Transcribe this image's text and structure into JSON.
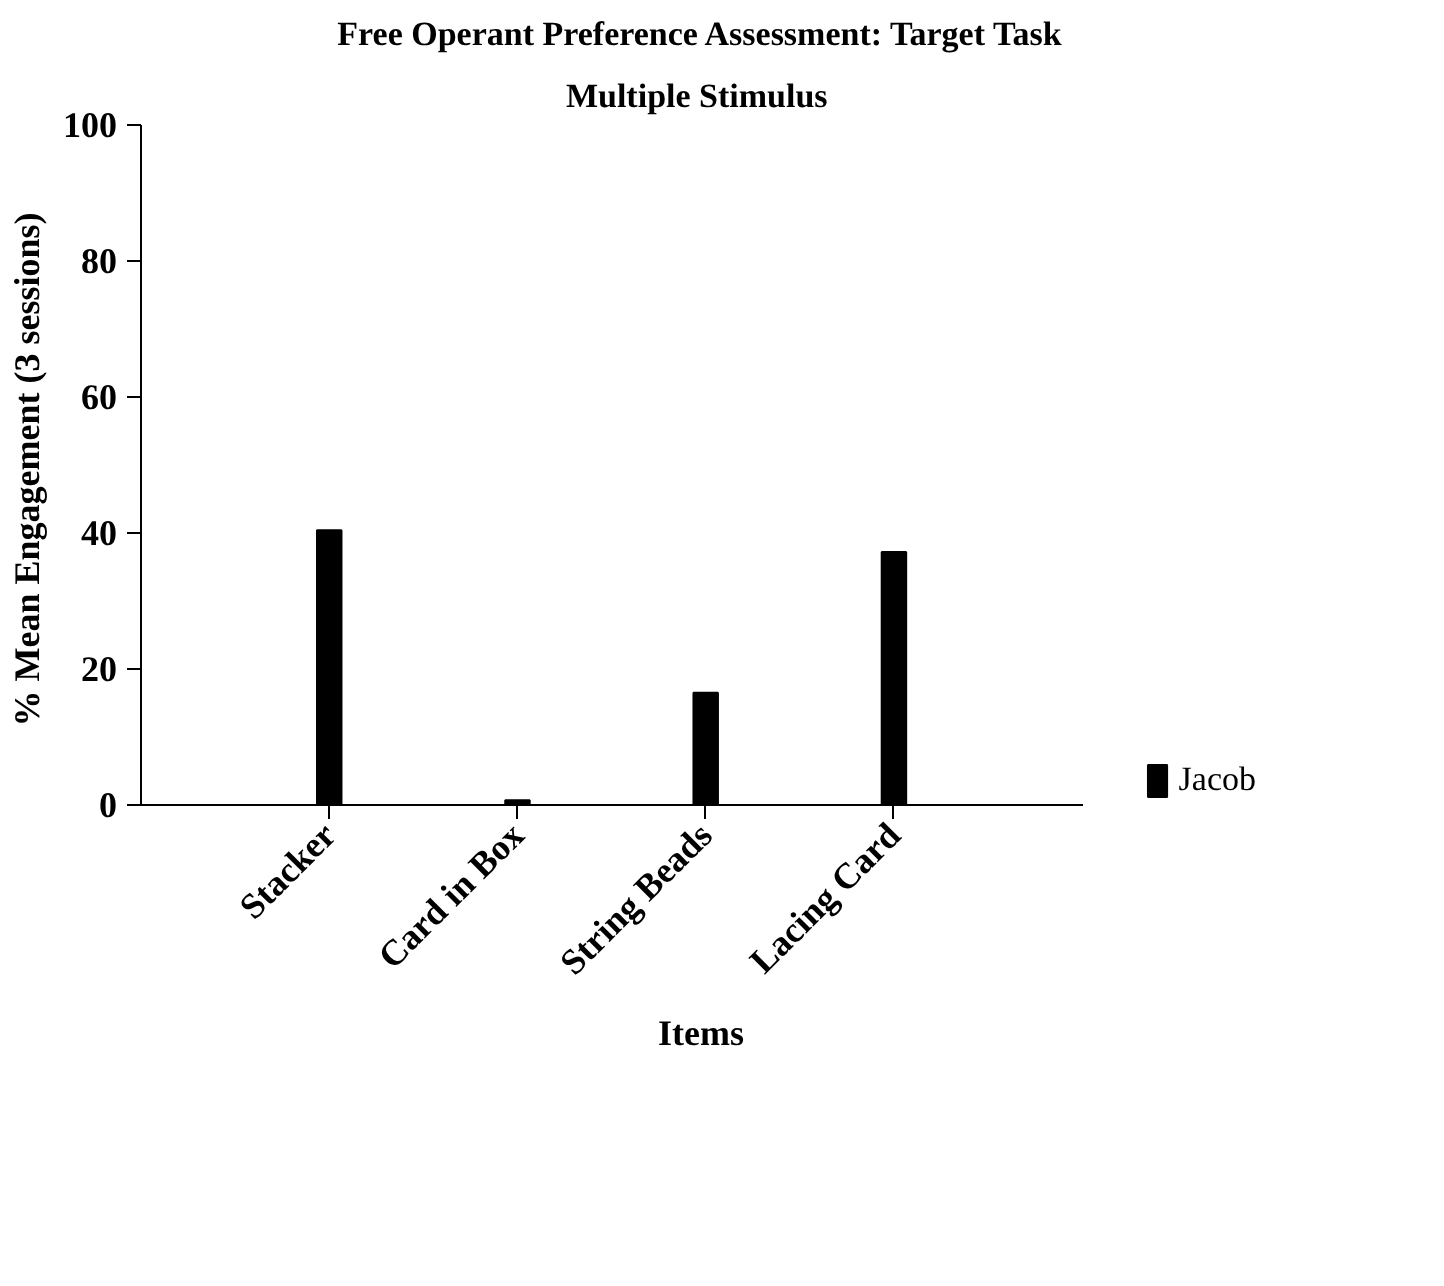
{
  "chart_data": {
    "type": "bar",
    "title": "Free Operant Preference Assessment: Target Task",
    "subtitle": "Multiple  Stimulus",
    "xlabel": "Items",
    "ylabel": "% Mean Engagement  (3 sessions)",
    "categories": [
      "Stacker",
      "Card in Box",
      "String Beads",
      "Lacing Card"
    ],
    "series": [
      {
        "name": "Jacob",
        "color": "#000000",
        "values": [
          40.4,
          0.7,
          16.5,
          37.2
        ]
      }
    ],
    "ylim": [
      0,
      100
    ],
    "yticks": [
      0,
      20,
      40,
      60,
      80,
      100
    ],
    "grid": false,
    "legend": "right"
  }
}
